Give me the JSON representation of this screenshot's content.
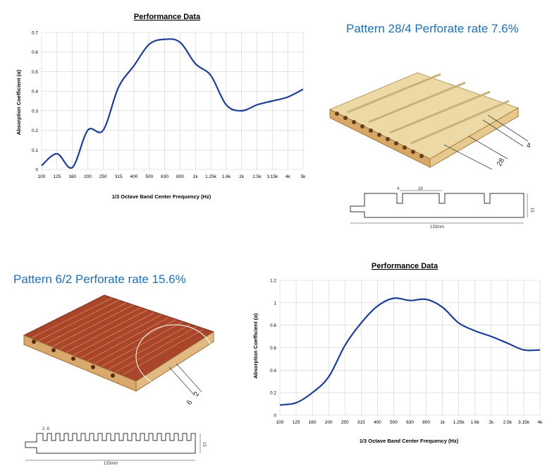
{
  "pattern_top": {
    "title": "Pattern 28/4 Perforate rate 7.6%",
    "dim_groove": "4",
    "dim_pitch": "28",
    "dim_thickness": "15",
    "dim_width": "133mm"
  },
  "pattern_bottom": {
    "title": "Pattern 6/2 Perforate rate 15.6%",
    "dim_groove": "2",
    "dim_pitch": "6",
    "dim_profile": "2, 6",
    "dim_thickness": "15",
    "dim_width": "133mm"
  },
  "colors": {
    "curve": "#1c3f94",
    "title_blue": "#1f6fb2",
    "grid": "#d0d0d0",
    "wood_light": "#ecd9a6",
    "wood_dark": "#a8452a"
  },
  "chart_data": [
    {
      "type": "line",
      "title": "Performance Data",
      "xlabel": "1/3 Octave Band Center Frequency (Hz)",
      "ylabel": "Absorption Coefficient (α)",
      "categories": [
        "100",
        "125",
        "160",
        "200",
        "250",
        "315",
        "400",
        "500",
        "630",
        "800",
        "1k",
        "1.25k",
        "1.6k",
        "2k",
        "2.5k",
        "3.15k",
        "4k",
        "5k"
      ],
      "yticks": [
        "0",
        "0.1",
        "0.2",
        "0.3",
        "0.4",
        "0.5",
        "0.6",
        "0.7"
      ],
      "ylim": [
        0,
        0.7
      ],
      "grid": true,
      "values": [
        0.02,
        0.08,
        0.01,
        0.2,
        0.2,
        0.42,
        0.53,
        0.64,
        0.665,
        0.65,
        0.54,
        0.48,
        0.33,
        0.3,
        0.33,
        0.35,
        0.37,
        0.41
      ]
    },
    {
      "type": "line",
      "title": "Performance Data",
      "xlabel": "1/3 Octave Band Center Frequency (Hz)",
      "ylabel": "Absorption Coefficient (α)",
      "categories": [
        "100",
        "125",
        "160",
        "200",
        "250",
        "315",
        "400",
        "500",
        "630",
        "800",
        "1k",
        "1.25k",
        "1.6k",
        "2k",
        "2.5k",
        "3.15k",
        "4k"
      ],
      "yticks": [
        "0",
        "0.2",
        "0.4",
        "0.6",
        "0.8",
        "1",
        "1.2"
      ],
      "ylim": [
        0,
        1.2
      ],
      "grid": true,
      "values": [
        0.09,
        0.11,
        0.2,
        0.34,
        0.62,
        0.82,
        0.97,
        1.04,
        1.02,
        1.03,
        0.96,
        0.82,
        0.75,
        0.7,
        0.64,
        0.58,
        0.58
      ]
    }
  ]
}
